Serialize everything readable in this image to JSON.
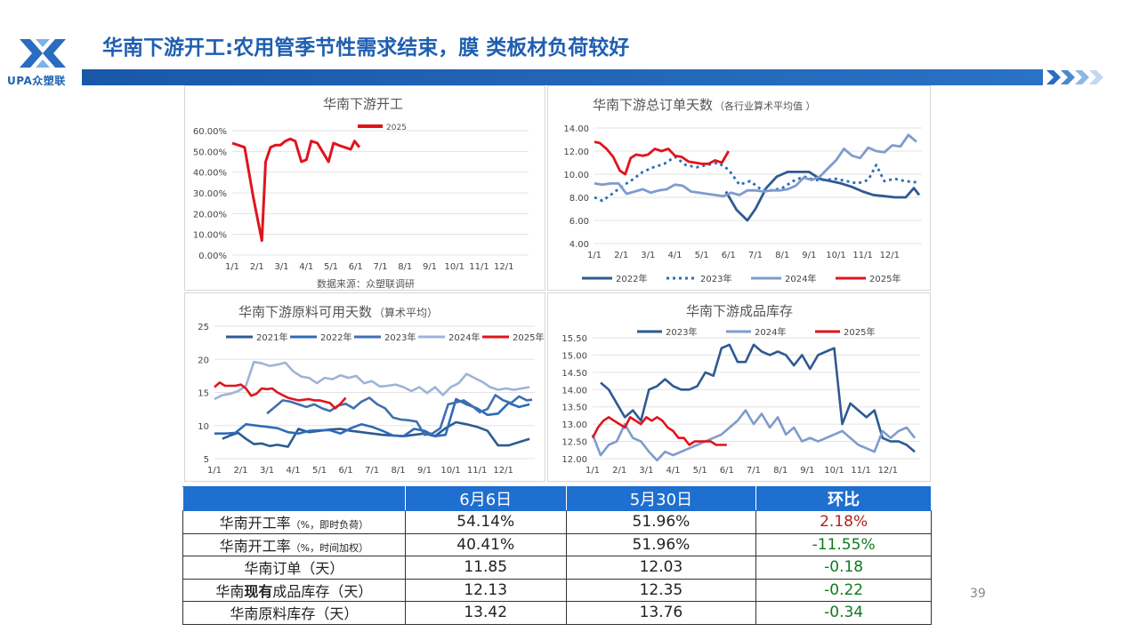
{
  "header": {
    "title": "华南下游开工:农用管季节性需求结束，膜 类板材负荷较好",
    "logo_text": "UPA众塑联"
  },
  "page_number": "39",
  "charts": {
    "c1": {
      "title": "华南下游开工",
      "source": "数据来源：众塑联调研",
      "x_labels": [
        "1/1",
        "2/1",
        "3/1",
        "4/1",
        "5/1",
        "6/1",
        "7/1",
        "8/1",
        "9/1",
        "10/1",
        "11/1",
        "12/1"
      ],
      "y_ticks": [
        "60.00%",
        "50.00%",
        "40.00%",
        "30.00%",
        "20.00%",
        "10.00%",
        "0.00%"
      ]
    },
    "c2": {
      "title": "华南下游总订单天数",
      "subtitle": "（各行业算术平均值 ）",
      "x_labels": [
        "1/1",
        "2/1",
        "3/1",
        "4/1",
        "5/1",
        "6/1",
        "7/1",
        "8/1",
        "9/1",
        "10/1",
        "11/1",
        "12/1"
      ],
      "y_ticks": [
        "14.00",
        "12.00",
        "10.00",
        "8.00",
        "6.00",
        "4.00"
      ]
    },
    "c3": {
      "title": "华南下游原料可用天数",
      "subtitle": "（算术平均）",
      "x_labels": [
        "1/1",
        "2/1",
        "3/1",
        "4/1",
        "5/1",
        "6/1",
        "7/1",
        "8/1",
        "9/1",
        "10/1",
        "11/1",
        "12/1"
      ],
      "y_ticks": [
        "25",
        "20",
        "15",
        "10",
        "5"
      ]
    },
    "c4": {
      "title": "华南下游成品库存",
      "x_labels": [
        "1/1",
        "2/1",
        "3/1",
        "4/1",
        "5/1",
        "6/1",
        "7/1",
        "8/1",
        "9/1",
        "10/1",
        "11/1",
        "12/1"
      ],
      "y_ticks": [
        "15.50",
        "15.00",
        "14.50",
        "14.00",
        "13.50",
        "13.00",
        "12.50",
        "12.00"
      ]
    }
  },
  "chart_data": [
    {
      "type": "line",
      "title": "华南下游开工",
      "ylim": [
        0,
        0.6
      ],
      "xlim": [
        0,
        12
      ],
      "series": [
        {
          "name": "2025",
          "color": "#e0141c",
          "x": [
            0,
            0.25,
            0.5,
            0.85,
            1.2,
            1.35,
            1.55,
            1.75,
            1.95,
            2.15,
            2.35,
            2.55,
            2.8,
            3.0,
            3.2,
            3.45,
            3.7,
            3.9,
            4.1,
            4.3,
            4.55,
            4.8,
            4.95,
            5.15
          ],
          "y": [
            0.54,
            0.53,
            0.52,
            0.28,
            0.07,
            0.45,
            0.52,
            0.53,
            0.53,
            0.55,
            0.56,
            0.55,
            0.45,
            0.46,
            0.55,
            0.54,
            0.49,
            0.45,
            0.54,
            0.53,
            0.52,
            0.51,
            0.55,
            0.52
          ]
        }
      ]
    },
    {
      "type": "line",
      "title": "华南下游总订单天数",
      "ylim": [
        4,
        14
      ],
      "xlim": [
        0,
        12.2
      ],
      "series": [
        {
          "name": "2022年",
          "color": "#2e5a92",
          "dash": "",
          "x": [
            4.9,
            5.3,
            5.7,
            6.0,
            6.4,
            6.8,
            7.2,
            7.6,
            8.0,
            8.4,
            8.8,
            9.2,
            9.6,
            10.0,
            10.4,
            10.8,
            11.2,
            11.6,
            11.9,
            12.1
          ],
          "y": [
            8.5,
            6.9,
            6.0,
            7.0,
            8.8,
            9.8,
            10.2,
            10.2,
            10.2,
            9.6,
            9.4,
            9.2,
            8.9,
            8.5,
            8.2,
            8.1,
            8.0,
            8.0,
            8.8,
            8.2
          ]
        },
        {
          "name": "2023年",
          "color": "#2e6bb8",
          "dash": "3,4",
          "x": [
            0,
            0.3,
            0.6,
            1.0,
            1.4,
            1.8,
            2.2,
            2.6,
            3.0,
            3.4,
            3.8,
            4.2,
            4.6,
            5.0,
            5.4,
            5.8,
            6.2,
            6.6,
            7.0,
            7.4,
            7.8,
            8.2,
            8.6,
            9.0,
            9.4,
            9.8,
            10.2,
            10.5,
            10.8,
            11.2,
            11.6,
            12.0
          ],
          "y": [
            8.0,
            7.7,
            8.2,
            8.9,
            9.5,
            10.2,
            10.6,
            10.9,
            11.5,
            10.8,
            10.6,
            10.8,
            11.0,
            10.4,
            9.1,
            9.4,
            8.7,
            8.6,
            8.8,
            9.4,
            9.8,
            9.5,
            9.5,
            9.6,
            9.4,
            9.2,
            9.5,
            10.8,
            9.4,
            9.6,
            9.4,
            9.3
          ]
        },
        {
          "name": "2024年",
          "color": "#7f9bcc",
          "dash": "",
          "x": [
            0,
            0.3,
            0.6,
            0.9,
            1.2,
            1.5,
            1.8,
            2.1,
            2.4,
            2.7,
            3.0,
            3.3,
            3.6,
            3.9,
            4.2,
            4.5,
            4.8,
            5.1,
            5.4,
            5.7,
            6.0,
            6.3,
            6.6,
            6.9,
            7.2,
            7.5,
            7.8,
            8.1,
            8.4,
            8.7,
            9.0,
            9.3,
            9.6,
            9.9,
            10.2,
            10.5,
            10.8,
            11.1,
            11.4,
            11.7,
            12.0
          ],
          "y": [
            9.2,
            9.1,
            9.2,
            9.2,
            8.3,
            8.5,
            8.7,
            8.4,
            8.6,
            8.7,
            9.1,
            9.0,
            8.5,
            8.4,
            8.3,
            8.2,
            8.1,
            8.4,
            8.2,
            8.6,
            8.6,
            8.5,
            8.6,
            8.6,
            8.7,
            9.0,
            9.7,
            9.5,
            9.8,
            10.5,
            11.2,
            12.2,
            11.6,
            11.4,
            12.3,
            12.0,
            11.9,
            12.5,
            12.4,
            13.4,
            12.8
          ]
        },
        {
          "name": "2025年",
          "color": "#e0141c",
          "dash": "",
          "x": [
            0,
            0.2,
            0.45,
            0.7,
            0.95,
            1.15,
            1.35,
            1.55,
            1.8,
            2.0,
            2.25,
            2.5,
            2.75,
            3.0,
            3.25,
            3.5,
            3.75,
            4.0,
            4.25,
            4.5,
            4.75,
            5.0
          ],
          "y": [
            12.8,
            12.7,
            12.2,
            11.5,
            10.3,
            10.0,
            11.4,
            11.7,
            11.6,
            11.7,
            12.2,
            12.0,
            12.2,
            11.6,
            11.5,
            11.1,
            11.0,
            10.9,
            10.9,
            11.2,
            11.0,
            12.0
          ]
        }
      ]
    },
    {
      "type": "line",
      "title": "华南下游原料可用天数",
      "ylim": [
        5,
        25
      ],
      "xlim": [
        0,
        12.2
      ],
      "series": [
        {
          "name": "2021年",
          "color": "#2e5a92",
          "x": [
            0.3,
            0.6,
            0.9,
            1.2,
            1.5,
            1.8,
            2.1,
            2.4,
            2.8,
            3.2,
            3.6,
            4.0,
            4.4,
            4.8,
            5.2,
            5.6,
            6.0,
            6.4,
            6.8,
            7.2,
            7.6,
            8.0,
            8.4,
            8.8,
            9.2,
            9.6,
            10.0,
            10.4,
            10.8,
            11.2,
            11.6,
            12.0
          ],
          "y": [
            8.0,
            8.5,
            8.9,
            8.0,
            7.2,
            7.3,
            6.9,
            7.1,
            6.8,
            9.5,
            9.0,
            9.2,
            9.4,
            9.5,
            9.2,
            9.0,
            8.8,
            8.6,
            8.5,
            8.4,
            8.6,
            8.8,
            8.4,
            9.6,
            10.5,
            10.2,
            9.8,
            9.2,
            7.0,
            7.0,
            7.5,
            8.0
          ]
        },
        {
          "name": "2022年",
          "color": "#2e6bb8",
          "x": [
            0,
            0.4,
            0.8,
            1.2,
            1.6,
            2.0,
            2.4,
            2.8,
            3.2,
            3.6,
            4.0,
            4.4,
            4.8,
            5.2,
            5.6,
            6.0,
            6.4,
            6.8,
            7.2,
            7.6,
            8.0,
            8.4,
            8.8,
            9.2,
            9.6,
            10.0,
            10.4,
            10.8,
            11.2,
            11.6,
            12.0
          ],
          "y": [
            8.8,
            8.8,
            8.9,
            10.2,
            10.0,
            9.8,
            9.6,
            9.0,
            8.8,
            9.2,
            9.3,
            9.3,
            8.8,
            9.6,
            10.2,
            9.8,
            9.2,
            8.5,
            8.4,
            9.5,
            9.2,
            8.4,
            8.6,
            14.0,
            13.2,
            12.6,
            11.6,
            11.8,
            13.4,
            12.8,
            13.2
          ]
        },
        {
          "name": "2023年",
          "color": "#3f6fae",
          "x": [
            2.0,
            2.3,
            2.6,
            2.9,
            3.2,
            3.5,
            3.8,
            4.1,
            4.4,
            4.7,
            5.0,
            5.3,
            5.6,
            5.9,
            6.2,
            6.5,
            6.8,
            7.1,
            7.4,
            7.7,
            8.0,
            8.3,
            8.6,
            8.9,
            9.2,
            9.5,
            9.8,
            10.1,
            10.4,
            10.7,
            11.0,
            11.3,
            11.6,
            11.9,
            12.1
          ],
          "y": [
            11.8,
            12.8,
            13.8,
            13.6,
            13.2,
            12.8,
            13.2,
            12.6,
            12.2,
            13.0,
            13.3,
            12.6,
            13.6,
            14.2,
            13.2,
            12.6,
            11.2,
            10.9,
            10.8,
            10.6,
            8.6,
            8.8,
            9.6,
            13.2,
            13.5,
            13.8,
            13.0,
            12.0,
            12.5,
            14.6,
            13.8,
            13.4,
            14.4,
            13.8,
            13.9
          ]
        },
        {
          "name": "2024年",
          "color": "#9db3d8",
          "x": [
            0,
            0.3,
            0.6,
            0.9,
            1.2,
            1.5,
            1.8,
            2.1,
            2.4,
            2.7,
            3.0,
            3.3,
            3.6,
            3.9,
            4.2,
            4.5,
            4.8,
            5.1,
            5.4,
            5.7,
            6.0,
            6.3,
            6.6,
            6.9,
            7.2,
            7.5,
            7.8,
            8.1,
            8.4,
            8.7,
            9.0,
            9.3,
            9.6,
            9.9,
            10.2,
            10.5,
            10.8,
            11.1,
            11.4,
            11.7,
            12.0
          ],
          "y": [
            14.0,
            14.6,
            14.8,
            15.2,
            16.0,
            19.6,
            19.4,
            19.0,
            19.2,
            19.5,
            18.2,
            17.4,
            17.2,
            16.4,
            17.2,
            17.0,
            17.6,
            17.2,
            17.5,
            16.4,
            16.7,
            15.9,
            16.0,
            16.2,
            15.8,
            15.2,
            15.8,
            14.9,
            15.8,
            14.6,
            15.8,
            16.4,
            17.8,
            17.2,
            16.6,
            15.8,
            15.4,
            15.6,
            15.4,
            15.6,
            15.8
          ]
        },
        {
          "name": "2025年",
          "color": "#e0141c",
          "x": [
            0,
            0.2,
            0.4,
            0.6,
            0.8,
            1.0,
            1.2,
            1.4,
            1.6,
            1.8,
            2.0,
            2.2,
            2.4,
            2.6,
            2.8,
            3.0,
            3.2,
            3.4,
            3.6,
            3.8,
            4.0,
            4.2,
            4.4,
            4.6,
            4.8,
            5.0
          ],
          "y": [
            15.8,
            16.5,
            16.0,
            16.0,
            16.0,
            16.2,
            15.6,
            14.5,
            14.8,
            15.6,
            15.5,
            15.6,
            15.0,
            14.6,
            14.2,
            14.0,
            13.8,
            13.9,
            14.0,
            13.8,
            13.8,
            13.6,
            13.4,
            12.6,
            13.3,
            14.2
          ]
        }
      ]
    },
    {
      "type": "line",
      "title": "华南下游成品库存",
      "ylim": [
        12,
        15.5
      ],
      "xlim": [
        0,
        12.2
      ],
      "series": [
        {
          "name": "2023年",
          "color": "#2e5a92",
          "x": [
            0.3,
            0.6,
            0.9,
            1.2,
            1.5,
            1.8,
            2.1,
            2.4,
            2.7,
            3.0,
            3.3,
            3.6,
            3.9,
            4.2,
            4.5,
            4.8,
            5.1,
            5.4,
            5.7,
            6.0,
            6.3,
            6.6,
            6.9,
            7.2,
            7.5,
            7.8,
            8.1,
            8.4,
            8.7,
            9.0,
            9.3,
            9.6,
            9.9,
            10.2,
            10.5,
            10.8,
            11.1,
            11.4,
            11.7,
            12.0
          ],
          "y": [
            14.2,
            14.0,
            13.6,
            13.2,
            13.4,
            13.1,
            14.0,
            14.1,
            14.3,
            14.1,
            14.0,
            14.0,
            14.1,
            14.5,
            14.4,
            15.2,
            15.3,
            14.8,
            14.8,
            15.3,
            15.1,
            15.0,
            15.1,
            15.0,
            14.7,
            15.0,
            14.6,
            15.0,
            15.1,
            15.2,
            13.0,
            13.6,
            13.4,
            13.2,
            13.4,
            12.6,
            12.5,
            12.5,
            12.4,
            12.2
          ]
        },
        {
          "name": "2024年",
          "color": "#7f9bcc",
          "x": [
            0,
            0.3,
            0.6,
            0.9,
            1.2,
            1.5,
            1.8,
            2.1,
            2.4,
            2.7,
            3.0,
            3.3,
            3.6,
            3.9,
            4.2,
            4.5,
            4.8,
            5.1,
            5.4,
            5.7,
            6.0,
            6.3,
            6.6,
            6.9,
            7.2,
            7.5,
            7.8,
            8.1,
            8.4,
            8.7,
            9.0,
            9.3,
            9.6,
            9.9,
            10.2,
            10.5,
            10.8,
            11.1,
            11.4,
            11.7,
            12.0
          ],
          "y": [
            12.7,
            12.1,
            12.4,
            12.5,
            13.0,
            12.6,
            12.5,
            12.2,
            11.95,
            12.2,
            12.1,
            12.2,
            12.3,
            12.4,
            12.5,
            12.6,
            12.7,
            12.9,
            13.1,
            13.4,
            13.0,
            13.3,
            12.9,
            13.2,
            12.7,
            12.9,
            12.5,
            12.6,
            12.5,
            12.6,
            12.7,
            12.8,
            12.6,
            12.4,
            12.3,
            12.2,
            12.8,
            12.6,
            12.8,
            12.9,
            12.6
          ]
        },
        {
          "name": "2025年",
          "color": "#e0141c",
          "x": [
            0,
            0.2,
            0.4,
            0.6,
            0.8,
            1.0,
            1.2,
            1.4,
            1.6,
            1.8,
            2.0,
            2.2,
            2.4,
            2.6,
            2.8,
            3.0,
            3.2,
            3.4,
            3.6,
            3.8,
            4.0,
            4.2,
            4.4,
            4.6,
            4.8,
            5.0
          ],
          "y": [
            12.6,
            12.9,
            13.1,
            13.2,
            13.1,
            13.0,
            12.9,
            13.2,
            13.1,
            13.0,
            13.2,
            13.1,
            13.2,
            13.1,
            12.9,
            12.8,
            12.6,
            12.6,
            12.4,
            12.5,
            12.5,
            12.5,
            12.5,
            12.4,
            12.4,
            12.4
          ]
        }
      ]
    }
  ],
  "table": {
    "headers": [
      "",
      "6月6日",
      "5月30日",
      "环比"
    ],
    "rows": [
      {
        "label_main": "华南开工率",
        "label_small": "（%，即时负荷）",
        "v1": "54.14%",
        "v2": "51.96%",
        "change": "2.18%",
        "dir": "pos"
      },
      {
        "label_main": "华南开工率",
        "label_small": "（%，时间加权）",
        "v1": "40.41%",
        "v2": "51.96%",
        "change": "-11.55%",
        "dir": "neg"
      },
      {
        "label_main": "华南订单（天）",
        "label_small": "",
        "v1": "11.85",
        "v2": "12.03",
        "change": "-0.18",
        "dir": "neg"
      },
      {
        "label_pre": "华南",
        "label_bold": "现有",
        "label_post": "成品库存（天）",
        "v1": "12.13",
        "v2": "12.35",
        "change": "-0.22",
        "dir": "neg"
      },
      {
        "label_main": "华南原料库存（天）",
        "label_small": "",
        "v1": "13.42",
        "v2": "13.76",
        "change": "-0.34",
        "dir": "neg"
      }
    ]
  }
}
